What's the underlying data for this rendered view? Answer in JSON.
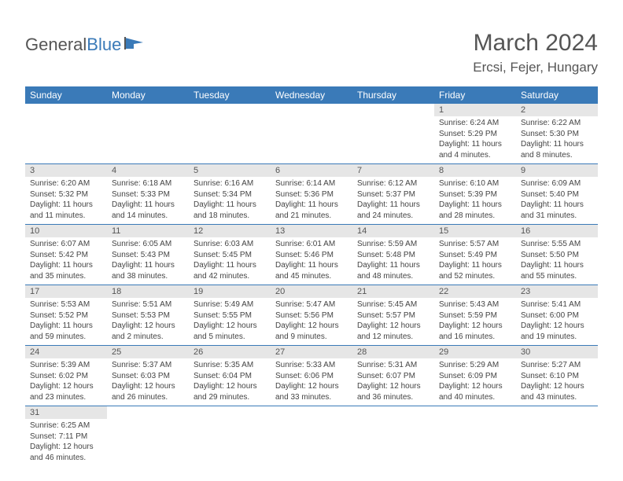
{
  "logo": {
    "text1": "General",
    "text2": "Blue"
  },
  "title": "March 2024",
  "location": "Ercsi, Fejer, Hungary",
  "colors": {
    "header_bg": "#3a7ab8",
    "header_fg": "#ffffff",
    "daynum_bg": "#e6e6e6",
    "border": "#3a7ab8",
    "text": "#444444"
  },
  "weekdays": [
    "Sunday",
    "Monday",
    "Tuesday",
    "Wednesday",
    "Thursday",
    "Friday",
    "Saturday"
  ],
  "weeks": [
    [
      null,
      null,
      null,
      null,
      null,
      {
        "n": "1",
        "sr": "Sunrise: 6:24 AM",
        "ss": "Sunset: 5:29 PM",
        "dl": "Daylight: 11 hours and 4 minutes."
      },
      {
        "n": "2",
        "sr": "Sunrise: 6:22 AM",
        "ss": "Sunset: 5:30 PM",
        "dl": "Daylight: 11 hours and 8 minutes."
      }
    ],
    [
      {
        "n": "3",
        "sr": "Sunrise: 6:20 AM",
        "ss": "Sunset: 5:32 PM",
        "dl": "Daylight: 11 hours and 11 minutes."
      },
      {
        "n": "4",
        "sr": "Sunrise: 6:18 AM",
        "ss": "Sunset: 5:33 PM",
        "dl": "Daylight: 11 hours and 14 minutes."
      },
      {
        "n": "5",
        "sr": "Sunrise: 6:16 AM",
        "ss": "Sunset: 5:34 PM",
        "dl": "Daylight: 11 hours and 18 minutes."
      },
      {
        "n": "6",
        "sr": "Sunrise: 6:14 AM",
        "ss": "Sunset: 5:36 PM",
        "dl": "Daylight: 11 hours and 21 minutes."
      },
      {
        "n": "7",
        "sr": "Sunrise: 6:12 AM",
        "ss": "Sunset: 5:37 PM",
        "dl": "Daylight: 11 hours and 24 minutes."
      },
      {
        "n": "8",
        "sr": "Sunrise: 6:10 AM",
        "ss": "Sunset: 5:39 PM",
        "dl": "Daylight: 11 hours and 28 minutes."
      },
      {
        "n": "9",
        "sr": "Sunrise: 6:09 AM",
        "ss": "Sunset: 5:40 PM",
        "dl": "Daylight: 11 hours and 31 minutes."
      }
    ],
    [
      {
        "n": "10",
        "sr": "Sunrise: 6:07 AM",
        "ss": "Sunset: 5:42 PM",
        "dl": "Daylight: 11 hours and 35 minutes."
      },
      {
        "n": "11",
        "sr": "Sunrise: 6:05 AM",
        "ss": "Sunset: 5:43 PM",
        "dl": "Daylight: 11 hours and 38 minutes."
      },
      {
        "n": "12",
        "sr": "Sunrise: 6:03 AM",
        "ss": "Sunset: 5:45 PM",
        "dl": "Daylight: 11 hours and 42 minutes."
      },
      {
        "n": "13",
        "sr": "Sunrise: 6:01 AM",
        "ss": "Sunset: 5:46 PM",
        "dl": "Daylight: 11 hours and 45 minutes."
      },
      {
        "n": "14",
        "sr": "Sunrise: 5:59 AM",
        "ss": "Sunset: 5:48 PM",
        "dl": "Daylight: 11 hours and 48 minutes."
      },
      {
        "n": "15",
        "sr": "Sunrise: 5:57 AM",
        "ss": "Sunset: 5:49 PM",
        "dl": "Daylight: 11 hours and 52 minutes."
      },
      {
        "n": "16",
        "sr": "Sunrise: 5:55 AM",
        "ss": "Sunset: 5:50 PM",
        "dl": "Daylight: 11 hours and 55 minutes."
      }
    ],
    [
      {
        "n": "17",
        "sr": "Sunrise: 5:53 AM",
        "ss": "Sunset: 5:52 PM",
        "dl": "Daylight: 11 hours and 59 minutes."
      },
      {
        "n": "18",
        "sr": "Sunrise: 5:51 AM",
        "ss": "Sunset: 5:53 PM",
        "dl": "Daylight: 12 hours and 2 minutes."
      },
      {
        "n": "19",
        "sr": "Sunrise: 5:49 AM",
        "ss": "Sunset: 5:55 PM",
        "dl": "Daylight: 12 hours and 5 minutes."
      },
      {
        "n": "20",
        "sr": "Sunrise: 5:47 AM",
        "ss": "Sunset: 5:56 PM",
        "dl": "Daylight: 12 hours and 9 minutes."
      },
      {
        "n": "21",
        "sr": "Sunrise: 5:45 AM",
        "ss": "Sunset: 5:57 PM",
        "dl": "Daylight: 12 hours and 12 minutes."
      },
      {
        "n": "22",
        "sr": "Sunrise: 5:43 AM",
        "ss": "Sunset: 5:59 PM",
        "dl": "Daylight: 12 hours and 16 minutes."
      },
      {
        "n": "23",
        "sr": "Sunrise: 5:41 AM",
        "ss": "Sunset: 6:00 PM",
        "dl": "Daylight: 12 hours and 19 minutes."
      }
    ],
    [
      {
        "n": "24",
        "sr": "Sunrise: 5:39 AM",
        "ss": "Sunset: 6:02 PM",
        "dl": "Daylight: 12 hours and 23 minutes."
      },
      {
        "n": "25",
        "sr": "Sunrise: 5:37 AM",
        "ss": "Sunset: 6:03 PM",
        "dl": "Daylight: 12 hours and 26 minutes."
      },
      {
        "n": "26",
        "sr": "Sunrise: 5:35 AM",
        "ss": "Sunset: 6:04 PM",
        "dl": "Daylight: 12 hours and 29 minutes."
      },
      {
        "n": "27",
        "sr": "Sunrise: 5:33 AM",
        "ss": "Sunset: 6:06 PM",
        "dl": "Daylight: 12 hours and 33 minutes."
      },
      {
        "n": "28",
        "sr": "Sunrise: 5:31 AM",
        "ss": "Sunset: 6:07 PM",
        "dl": "Daylight: 12 hours and 36 minutes."
      },
      {
        "n": "29",
        "sr": "Sunrise: 5:29 AM",
        "ss": "Sunset: 6:09 PM",
        "dl": "Daylight: 12 hours and 40 minutes."
      },
      {
        "n": "30",
        "sr": "Sunrise: 5:27 AM",
        "ss": "Sunset: 6:10 PM",
        "dl": "Daylight: 12 hours and 43 minutes."
      }
    ],
    [
      {
        "n": "31",
        "sr": "Sunrise: 6:25 AM",
        "ss": "Sunset: 7:11 PM",
        "dl": "Daylight: 12 hours and 46 minutes."
      },
      null,
      null,
      null,
      null,
      null,
      null
    ]
  ]
}
